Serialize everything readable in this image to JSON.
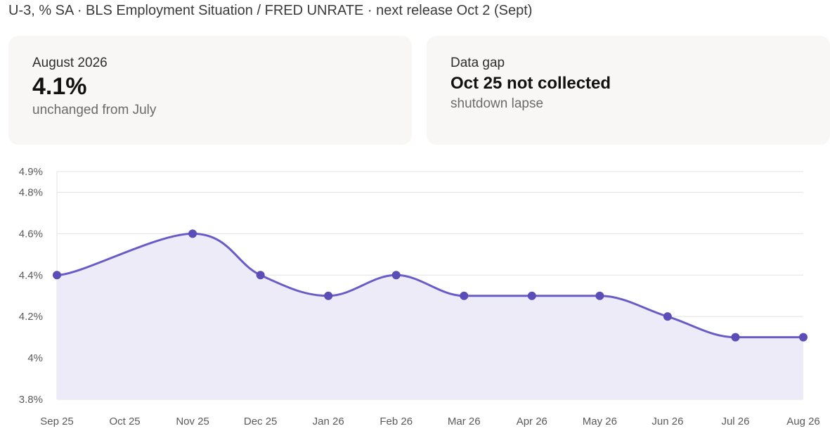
{
  "header": {
    "subtitle": "U-3, % SA · BLS Employment Situation / FRED UNRATE · next release Oct 2 (Sept)"
  },
  "cards": {
    "current": {
      "label": "August 2026",
      "value": "4.1%",
      "note": "unchanged from July"
    },
    "gap": {
      "label": "Data gap",
      "value": "Oct 25 not collected",
      "note": "shutdown lapse"
    }
  },
  "colors": {
    "line": "#6a5cc8",
    "point": "#5b4db8",
    "area": "#ecebf7",
    "grid": "#e3e3e3"
  },
  "chart_data": {
    "type": "area",
    "categories": [
      "Sep 25",
      "Oct 25",
      "Nov 25",
      "Dec 25",
      "Jan 26",
      "Feb 26",
      "Mar 26",
      "Apr 26",
      "May 26",
      "Jun 26",
      "Jul 26",
      "Aug 26"
    ],
    "values": [
      4.4,
      null,
      4.6,
      4.4,
      4.3,
      4.4,
      4.3,
      4.3,
      4.3,
      4.2,
      4.1,
      4.1
    ],
    "yticks": [
      3.8,
      4.0,
      4.2,
      4.4,
      4.6,
      4.8,
      4.9
    ],
    "ytick_labels": [
      "3.8%",
      "4%",
      "4.2%",
      "4.4%",
      "4.6%",
      "4.8%",
      "4.9%"
    ],
    "ylim": [
      3.8,
      4.9
    ],
    "grid": true,
    "legend": "none",
    "xlabel": "",
    "ylabel": ""
  }
}
